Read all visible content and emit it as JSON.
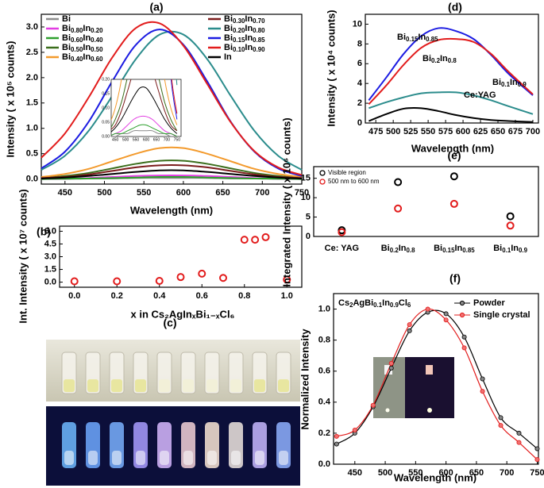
{
  "chart_data": [
    {
      "panel": "(a)",
      "type": "line",
      "x": [
        420,
        450,
        480,
        510,
        540,
        570,
        600,
        630,
        660,
        690,
        720,
        750
      ],
      "xlim": [
        420,
        750
      ],
      "ylim": [
        -0.1,
        3.25
      ],
      "xticks": [
        450,
        500,
        550,
        600,
        650,
        700,
        750
      ],
      "yticks": [
        {
          "value": 0,
          "label": "0.0"
        },
        {
          "value": 0.5,
          "label": "0.5"
        },
        {
          "value": 1,
          "label": "1.0"
        },
        {
          "value": 1.5,
          "label": "1.5"
        },
        {
          "value": 2,
          "label": "2.0"
        },
        {
          "value": 2.5,
          "label": "2.5"
        },
        {
          "value": 3,
          "label": "3.0"
        }
      ],
      "xlabel": "Wavelength (nm)",
      "ylabel": "Intensity ( x 10⁵ counts)",
      "series": [
        {
          "name": "Bi",
          "color": "#8c8c8c",
          "values": [
            0,
            0,
            0.01,
            0.01,
            0.02,
            0.02,
            0.02,
            0.02,
            0.01,
            0.01,
            0,
            0
          ]
        },
        {
          "name": "Bi0.80In0.20",
          "color": "#e23de2",
          "values": [
            0,
            0.01,
            0.02,
            0.04,
            0.06,
            0.07,
            0.07,
            0.06,
            0.04,
            0.02,
            0.01,
            0
          ]
        },
        {
          "name": "Bi0.60In0.40",
          "color": "#2ea02e",
          "values": [
            0,
            0.01,
            0.01,
            0.02,
            0.03,
            0.04,
            0.04,
            0.03,
            0.02,
            0.01,
            0.01,
            0
          ]
        },
        {
          "name": "Bi0.50In0.50",
          "color": "#3b6e1c",
          "values": [
            0.02,
            0.06,
            0.12,
            0.21,
            0.3,
            0.36,
            0.36,
            0.3,
            0.21,
            0.12,
            0.06,
            0.02
          ]
        },
        {
          "name": "Bi0.40In0.60",
          "color": "#f39a2c",
          "values": [
            0.04,
            0.1,
            0.2,
            0.35,
            0.5,
            0.61,
            0.61,
            0.5,
            0.35,
            0.2,
            0.1,
            0.04
          ]
        },
        {
          "name": "Bi0.30In0.70",
          "color": "#7b1b1b",
          "values": [
            0.02,
            0.04,
            0.09,
            0.16,
            0.23,
            0.27,
            0.27,
            0.23,
            0.16,
            0.09,
            0.04,
            0.02
          ]
        },
        {
          "name": "Bi0.20In0.80",
          "color": "#2b8c8c",
          "values": [
            0.18,
            0.46,
            0.95,
            1.64,
            2.37,
            2.85,
            2.85,
            2.37,
            1.64,
            0.95,
            0.46,
            0.18
          ]
        },
        {
          "name": "Bi0.15In0.85",
          "color": "#1c1ce2",
          "values": [
            0.21,
            0.54,
            1.13,
            1.93,
            2.65,
            2.95,
            2.65,
            1.93,
            1.13,
            0.54,
            0.21,
            0.06
          ]
        },
        {
          "name": "Bi0.10In0.90",
          "color": "#e21c1c",
          "values": [
            0.42,
            0.9,
            1.61,
            2.4,
            2.98,
            3.07,
            2.63,
            1.88,
            1.12,
            0.55,
            0.23,
            0.08
          ]
        },
        {
          "name": "In",
          "color": "#000000",
          "values": [
            0.01,
            0.03,
            0.06,
            0.1,
            0.14,
            0.17,
            0.17,
            0.14,
            0.1,
            0.06,
            0.03,
            0.01
          ]
        }
      ],
      "inset": {
        "xlim": [
          430,
          770
        ],
        "ylim": [
          0,
          0.2
        ],
        "xticks": [
          450,
          500,
          550,
          600,
          650,
          700,
          750
        ],
        "yticks": [
          {
            "value": 0,
            "label": "0.00"
          },
          {
            "value": 0.05,
            "label": "0.05"
          },
          {
            "value": 0.1,
            "label": "0.10"
          },
          {
            "value": 0.15,
            "label": "0.15"
          },
          {
            "value": 0.2,
            "label": "0.20"
          }
        ]
      }
    },
    {
      "panel": "(b)",
      "type": "scatter",
      "color": "#e21c1c",
      "x": [
        0,
        0.2,
        0.4,
        0.5,
        0.6,
        0.7,
        0.8,
        0.85,
        0.9,
        1.0
      ],
      "values": [
        0.1,
        0.1,
        0.15,
        0.6,
        1.0,
        0.5,
        5.0,
        5.0,
        5.3,
        0.3
      ],
      "xlim": [
        -0.07,
        1.07
      ],
      "ylim": [
        -0.6,
        6.6
      ],
      "xticks": [
        {
          "value": 0,
          "label": "0.0"
        },
        {
          "value": 0.2,
          "label": "0.2"
        },
        {
          "value": 0.4,
          "label": "0.4"
        },
        {
          "value": 0.6,
          "label": "0.6"
        },
        {
          "value": 0.8,
          "label": "0.8"
        },
        {
          "value": 1,
          "label": "1.0"
        }
      ],
      "yticks": [
        {
          "value": 0,
          "label": "0.0"
        },
        {
          "value": 1.5,
          "label": "1.5"
        },
        {
          "value": 3,
          "label": "3.0"
        },
        {
          "value": 4.5,
          "label": "4.5"
        },
        {
          "value": 6,
          "label": "6.0"
        }
      ],
      "xlabel": "x in Cs₂AgInₓBi₁₋ₓCl₆",
      "ylabel": "Int. Intensity ( x 10⁷ counts)"
    },
    {
      "panel": "(c)",
      "type": "image"
    },
    {
      "panel": "(d)",
      "type": "line",
      "x": [
        465,
        490,
        515,
        540,
        565,
        590,
        615,
        640,
        665,
        700
      ],
      "xlim": [
        460,
        708
      ],
      "ylim": [
        0,
        11
      ],
      "xticks": [
        475,
        500,
        525,
        550,
        575,
        600,
        625,
        650,
        675,
        700
      ],
      "yticks": [
        0,
        2,
        4,
        6,
        8,
        10
      ],
      "xlabel": "Wavelength (nm)",
      "ylabel": "Intensity ( x 10⁴ counts)",
      "series": [
        {
          "name": "Bi0.15In0.85",
          "color": "#1c1ce2",
          "values": [
            2.3,
            4.6,
            7.0,
            8.8,
            9.6,
            9.3,
            8.5,
            6.9,
            5.0,
            2.8
          ]
        },
        {
          "name": "Bi0.2In0.8",
          "color": "#e21c1c",
          "values": [
            1.9,
            3.8,
            5.9,
            7.6,
            8.4,
            8.5,
            8.2,
            7.0,
            5.2,
            2.9
          ]
        },
        {
          "name": "Bi0.1In0.9",
          "color": "#2b8c8c",
          "values": [
            1.5,
            2.1,
            2.6,
            3.0,
            3.1,
            3.1,
            2.8,
            2.3,
            1.7,
            0.9
          ]
        },
        {
          "name": "Ce:YAG",
          "color": "#000000",
          "values": [
            0.2,
            0.9,
            1.45,
            1.5,
            1.2,
            0.8,
            0.5,
            0.3,
            0.2,
            0.1
          ]
        }
      ]
    },
    {
      "panel": "(e)",
      "type": "scatter",
      "categories": [
        "Ce: YAG",
        "Bi0.2In0.8",
        "Bi0.15In0.85",
        "Bi0.1In0.9"
      ],
      "ylim": [
        0,
        18
      ],
      "yticks": [
        0,
        5,
        10,
        15
      ],
      "ylabel": "Integrated Intensity ( x 10⁶ counts)",
      "series": [
        {
          "name": "Visible region",
          "color": "#000000",
          "values": [
            1.6,
            14.0,
            15.5,
            5.2
          ]
        },
        {
          "name": "500 nm to 600 nm",
          "color": "#e21c1c",
          "values": [
            1.1,
            7.2,
            8.4,
            2.8
          ]
        }
      ]
    },
    {
      "panel": "(f)",
      "type": "line",
      "title": "Cs2AgBi0.1In0.9Cl6",
      "x": [
        420,
        450,
        480,
        510,
        540,
        570,
        600,
        630,
        660,
        690,
        720,
        750
      ],
      "xlim": [
        415,
        752
      ],
      "ylim": [
        0,
        1.1
      ],
      "xticks": [
        450,
        500,
        550,
        600,
        650,
        700,
        750
      ],
      "yticks": [
        {
          "value": 0,
          "label": "0.0"
        },
        {
          "value": 0.2,
          "label": "0.2"
        },
        {
          "value": 0.4,
          "label": "0.4"
        },
        {
          "value": 0.6,
          "label": "0.6"
        },
        {
          "value": 0.8,
          "label": "0.8"
        },
        {
          "value": 1,
          "label": "1.0"
        }
      ],
      "xlabel": "Wavelength (nm)",
      "ylabel": "Normalized Intensity",
      "series": [
        {
          "name": "Powder",
          "color": "#000000",
          "values": [
            0.13,
            0.2,
            0.37,
            0.62,
            0.86,
            0.98,
            0.97,
            0.82,
            0.55,
            0.3,
            0.2,
            0.1
          ]
        },
        {
          "name": "Single crystal",
          "color": "#e21c1c",
          "values": [
            0.18,
            0.22,
            0.38,
            0.65,
            0.9,
            1.0,
            0.93,
            0.75,
            0.47,
            0.25,
            0.14,
            0.03
          ]
        }
      ]
    }
  ]
}
